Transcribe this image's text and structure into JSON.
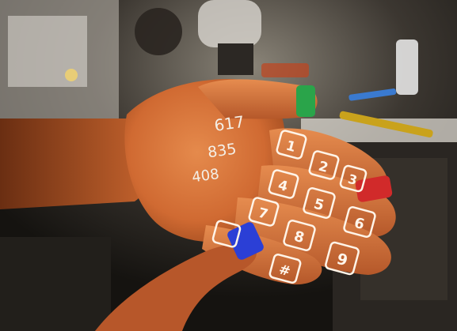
{
  "photo": {
    "projected_numbers": [
      "617",
      "835",
      "408"
    ],
    "keypad": [
      "1",
      "2",
      "3",
      "4",
      "5",
      "6",
      "7",
      "8",
      "9",
      "#"
    ],
    "markers": [
      {
        "name": "thumb-marker",
        "color": "#2aa44a"
      },
      {
        "name": "index-marker",
        "color": "#d12a2a"
      },
      {
        "name": "pointer-marker",
        "color": "#2b3fd6"
      }
    ],
    "colors": {
      "skin": "#d8733a",
      "skin_shadow": "#a14c20",
      "background": "#141210",
      "bench": "#e6e3dc",
      "projection": "#fff4e8"
    }
  }
}
